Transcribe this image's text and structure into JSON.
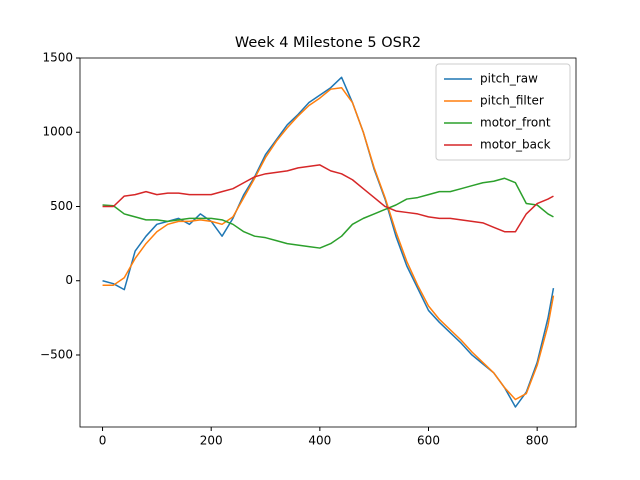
{
  "chart_data": {
    "type": "line",
    "title": "Week 4 Milestone 5 OSR2",
    "x": [
      0,
      20,
      40,
      60,
      80,
      100,
      120,
      140,
      160,
      180,
      200,
      220,
      240,
      260,
      280,
      300,
      320,
      340,
      360,
      380,
      400,
      420,
      440,
      460,
      480,
      500,
      520,
      540,
      560,
      580,
      600,
      620,
      640,
      660,
      680,
      700,
      720,
      740,
      760,
      780,
      800,
      820,
      830
    ],
    "series": [
      {
        "name": "pitch_raw",
        "color": "#1f77b4",
        "values": [
          0,
          -20,
          -60,
          200,
          300,
          380,
          400,
          420,
          380,
          450,
          400,
          300,
          420,
          580,
          700,
          850,
          950,
          1050,
          1120,
          1200,
          1250,
          1300,
          1370,
          1200,
          1000,
          750,
          550,
          300,
          100,
          -50,
          -200,
          -280,
          -350,
          -420,
          -500,
          -560,
          -620,
          -720,
          -850,
          -750,
          -550,
          -250,
          -50
        ]
      },
      {
        "name": "pitch_filter",
        "color": "#ff7f0e",
        "values": [
          -30,
          -30,
          20,
          150,
          250,
          330,
          380,
          400,
          400,
          410,
          400,
          380,
          430,
          560,
          690,
          830,
          940,
          1030,
          1110,
          1180,
          1230,
          1290,
          1300,
          1200,
          1000,
          760,
          560,
          330,
          130,
          -30,
          -170,
          -260,
          -330,
          -400,
          -480,
          -550,
          -620,
          -720,
          -800,
          -760,
          -570,
          -300,
          -100
        ]
      },
      {
        "name": "motor_front",
        "color": "#2ca02c",
        "values": [
          510,
          505,
          450,
          430,
          410,
          410,
          400,
          410,
          420,
          420,
          420,
          410,
          380,
          330,
          300,
          290,
          270,
          250,
          240,
          230,
          220,
          250,
          300,
          380,
          420,
          450,
          480,
          510,
          550,
          560,
          580,
          600,
          600,
          620,
          640,
          660,
          670,
          690,
          660,
          520,
          510,
          450,
          430
        ]
      },
      {
        "name": "motor_back",
        "color": "#d62728",
        "values": [
          500,
          500,
          570,
          580,
          600,
          580,
          590,
          590,
          580,
          580,
          580,
          600,
          620,
          660,
          700,
          720,
          730,
          740,
          760,
          770,
          780,
          740,
          720,
          680,
          620,
          560,
          500,
          470,
          460,
          450,
          430,
          420,
          420,
          410,
          400,
          390,
          360,
          330,
          330,
          450,
          520,
          550,
          570
        ]
      }
    ],
    "xlim": [
      -41.5,
      871.5
    ],
    "ylim": [
      -985,
      1500
    ],
    "xticks": [
      0,
      200,
      400,
      600,
      800
    ],
    "yticks": [
      {
        "value": -500,
        "label": "−500"
      },
      0,
      500,
      1000,
      1500
    ],
    "legend": "upper right"
  }
}
